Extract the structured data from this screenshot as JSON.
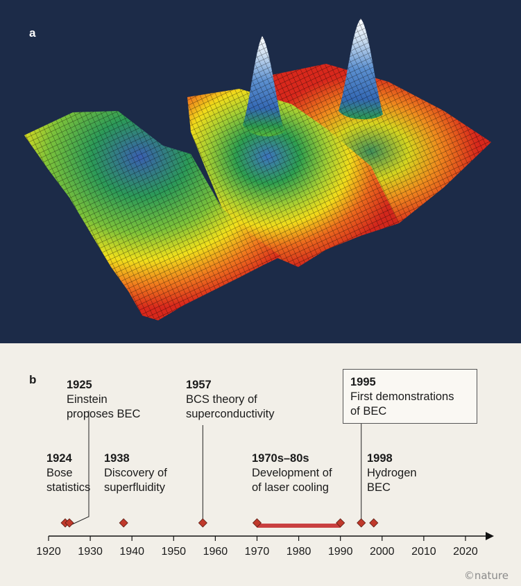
{
  "panel_a": {
    "label": "a",
    "colors": {
      "background": "#1c2b48",
      "low": "#d42a1e",
      "mid_low": "#f2e21a",
      "mid": "#2aa84a",
      "high": "#3569b4",
      "peak": "#ffffff"
    }
  },
  "panel_b": {
    "label": "b",
    "events": [
      {
        "year_label": "1924",
        "desc": "Bose\nstatistics"
      },
      {
        "year_label": "1925",
        "desc": "Einstein\nproposes BEC"
      },
      {
        "year_label": "1938",
        "desc": "Discovery of\nsuperfluidity"
      },
      {
        "year_label": "1957",
        "desc": "BCS theory of\nsuperconductivity"
      },
      {
        "year_label": "1970s–80s",
        "desc": "Development of\nof laser cooling"
      },
      {
        "year_label": "1995",
        "desc": "First demonstrations\nof BEC"
      },
      {
        "year_label": "1998",
        "desc": "Hydrogen\nBEC"
      }
    ],
    "axis": {
      "ticks": [
        "1920",
        "1930",
        "1940",
        "1950",
        "1960",
        "1970",
        "1980",
        "1990",
        "2000",
        "2010",
        "2020"
      ]
    },
    "colors": {
      "marker": "#c0392b",
      "range_bar": "#c94040",
      "axis": "#111111"
    }
  },
  "chart_data": {
    "type": "timeline",
    "x_range": [
      1920,
      2027
    ],
    "markers": [
      1924,
      1925,
      1938,
      1957,
      1970,
      1990,
      1995,
      1998
    ],
    "range": [
      1970,
      1990
    ]
  },
  "credit": "©nature"
}
